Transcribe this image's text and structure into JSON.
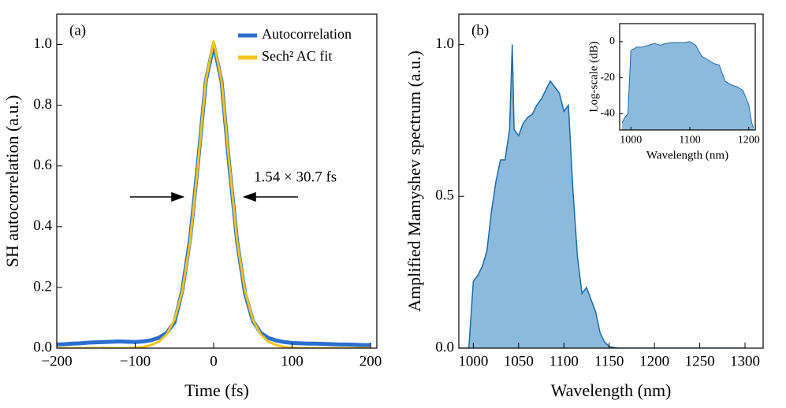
{
  "chart_data": [
    {
      "type": "line",
      "xlabel": "Time (fs)",
      "ylabel": "SH autocorrelation (a.u.)",
      "annotations": [
        "(a)",
        "1.54 × 30.7 fs"
      ],
      "legend": "upper right",
      "xlim": [
        -200,
        208
      ],
      "ylim": [
        0,
        1.1
      ],
      "xticks": [
        {
          "value": -200,
          "label": "−200"
        },
        {
          "value": -100,
          "label": "−100"
        },
        0,
        100,
        200
      ],
      "yticks": [
        {
          "value": 0,
          "label": "0.0"
        },
        {
          "value": 0.2,
          "label": "0.2"
        },
        {
          "value": 0.4,
          "label": "0.4"
        },
        {
          "value": 0.6,
          "label": "0.6"
        },
        {
          "value": 0.8,
          "label": "0.8"
        },
        {
          "value": 1,
          "label": "1.0"
        }
      ],
      "x": [
        -200,
        -190,
        -180,
        -170,
        -160,
        -150,
        -140,
        -130,
        -120,
        -110,
        -100,
        -90,
        -80,
        -70,
        -60,
        -50,
        -40,
        -30,
        -20,
        -10,
        0,
        10,
        20,
        30,
        40,
        50,
        60,
        70,
        80,
        90,
        100,
        110,
        120,
        130,
        140,
        150,
        160,
        170,
        180,
        190,
        200
      ],
      "series": [
        {
          "name": "Autocorrelation",
          "color": "#2b6fd1",
          "values": [
            0.012,
            0.013,
            0.015,
            0.016,
            0.018,
            0.019,
            0.02,
            0.021,
            0.022,
            0.021,
            0.02,
            0.022,
            0.026,
            0.034,
            0.05,
            0.085,
            0.19,
            0.36,
            0.61,
            0.88,
            1.0,
            0.88,
            0.6,
            0.35,
            0.18,
            0.09,
            0.05,
            0.033,
            0.025,
            0.02,
            0.017,
            0.016,
            0.015,
            0.015,
            0.014,
            0.013,
            0.012,
            0.012,
            0.011,
            0.01,
            0.01
          ]
        },
        {
          "name": "Sech² AC fit",
          "color": "#f2c31b",
          "values": [
            0,
            0,
            0,
            0,
            0,
            0,
            0,
            0,
            0,
            0,
            0.002,
            0.004,
            0.01,
            0.021,
            0.045,
            0.093,
            0.187,
            0.352,
            0.606,
            0.882,
            1.01,
            0.882,
            0.606,
            0.352,
            0.187,
            0.093,
            0.045,
            0.021,
            0.01,
            0.004,
            0.002,
            0,
            0,
            0,
            0,
            0,
            0,
            0,
            0,
            0,
            0
          ]
        }
      ]
    },
    {
      "type": "area",
      "xlabel": "Wavelength (nm)",
      "ylabel": "Amplified Mamyshev spectrum (a.u.)",
      "annotations": [
        "(b)"
      ],
      "xlim": [
        984,
        1320
      ],
      "ylim": [
        0,
        1.1
      ],
      "xticks": [
        1000,
        1050,
        1100,
        1150,
        1200,
        1250,
        1300
      ],
      "yticks": [
        {
          "value": 0,
          "label": "0.0"
        },
        0.5,
        {
          "value": 1,
          "label": "1.0"
        }
      ],
      "x": [
        985,
        990,
        995,
        1000,
        1005,
        1010,
        1015,
        1020,
        1025,
        1030,
        1035,
        1040,
        1043,
        1045,
        1050,
        1055,
        1060,
        1065,
        1070,
        1075,
        1080,
        1085,
        1090,
        1095,
        1100,
        1105,
        1110,
        1115,
        1120,
        1125,
        1130,
        1135,
        1140,
        1145,
        1150,
        1160,
        1200,
        1300
      ],
      "color": "#1f6aa6",
      "fill": "#8cbadd",
      "values": [
        0,
        0,
        0,
        0.22,
        0.24,
        0.27,
        0.32,
        0.45,
        0.55,
        0.62,
        0.62,
        0.72,
        1.0,
        0.72,
        0.7,
        0.74,
        0.76,
        0.77,
        0.8,
        0.82,
        0.85,
        0.88,
        0.86,
        0.84,
        0.78,
        0.8,
        0.52,
        0.3,
        0.18,
        0.2,
        0.16,
        0.12,
        0.05,
        0.02,
        0.005,
        0,
        0,
        0
      ]
    },
    {
      "type": "area",
      "xlabel": "Wavelength (nm)",
      "ylabel": "Log-scale (dB)",
      "xlim": [
        981,
        1211
      ],
      "ylim": [
        -49,
        10
      ],
      "xticks": [
        1000,
        1100,
        1200
      ],
      "yticks": [
        0,
        -20,
        -40
      ],
      "x": [
        985,
        990,
        995,
        1000,
        1010,
        1020,
        1030,
        1040,
        1050,
        1060,
        1070,
        1080,
        1090,
        1100,
        1110,
        1120,
        1130,
        1140,
        1150,
        1160,
        1170,
        1180,
        1190,
        1200,
        1205,
        1208
      ],
      "color": "#1f6aa6",
      "fill": "#8cbadd",
      "values": [
        -45,
        -42,
        -40,
        -5,
        -3,
        -3,
        -2,
        -1,
        -2,
        -1,
        -0.5,
        -0.5,
        -0.5,
        0,
        -2,
        -8,
        -10,
        -12,
        -13,
        -22,
        -24,
        -25,
        -27,
        -35,
        -45,
        -48
      ]
    }
  ]
}
